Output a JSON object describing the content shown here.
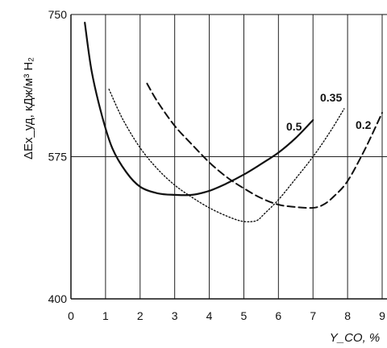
{
  "chart_data": {
    "type": "line",
    "xlabel": "Y_CO, %",
    "ylabel": "ΔEx_уд, кДж/м³ H₂",
    "x_ticks": [
      "0",
      "1",
      "2",
      "3",
      "4",
      "5",
      "6",
      "7",
      "8",
      "9"
    ],
    "y_ticks": [
      "400",
      "575",
      "750"
    ],
    "xlim": [
      0,
      9
    ],
    "ylim": [
      400,
      750
    ],
    "grid": "vertical lines at each integer x; horizontal reference line at y=575",
    "series": [
      {
        "name": "0.5",
        "style": "solid",
        "x": [
          0.4,
          0.6,
          0.9,
          1.2,
          1.6,
          2.0,
          2.5,
          3.0,
          3.5,
          4.0,
          4.5,
          5.0,
          5.5,
          6.0,
          6.5,
          7.0
        ],
        "y": [
          740,
          680,
          625,
          585,
          556,
          538,
          530,
          528,
          528,
          533,
          542,
          553,
          566,
          580,
          598,
          620
        ]
      },
      {
        "name": "0.35",
        "style": "dotted",
        "x": [
          1.1,
          1.5,
          2.0,
          2.5,
          3.0,
          3.5,
          4.0,
          4.5,
          4.9,
          5.2,
          5.4,
          5.6,
          6.0,
          6.5,
          7.0,
          7.5,
          7.9
        ],
        "y": [
          658,
          621,
          586,
          560,
          540,
          525,
          512,
          502,
          496,
          495,
          497,
          505,
          522,
          548,
          575,
          606,
          634
        ]
      },
      {
        "name": "0.2",
        "style": "dashed",
        "x": [
          2.2,
          2.5,
          3.0,
          3.5,
          4.0,
          4.5,
          5.0,
          5.5,
          6.0,
          6.5,
          7.0,
          7.3,
          7.6,
          8.0,
          8.5,
          9.0
        ],
        "y": [
          665,
          643,
          613,
          590,
          568,
          550,
          536,
          524,
          516,
          513,
          512,
          516,
          526,
          545,
          584,
          629
        ]
      }
    ]
  }
}
